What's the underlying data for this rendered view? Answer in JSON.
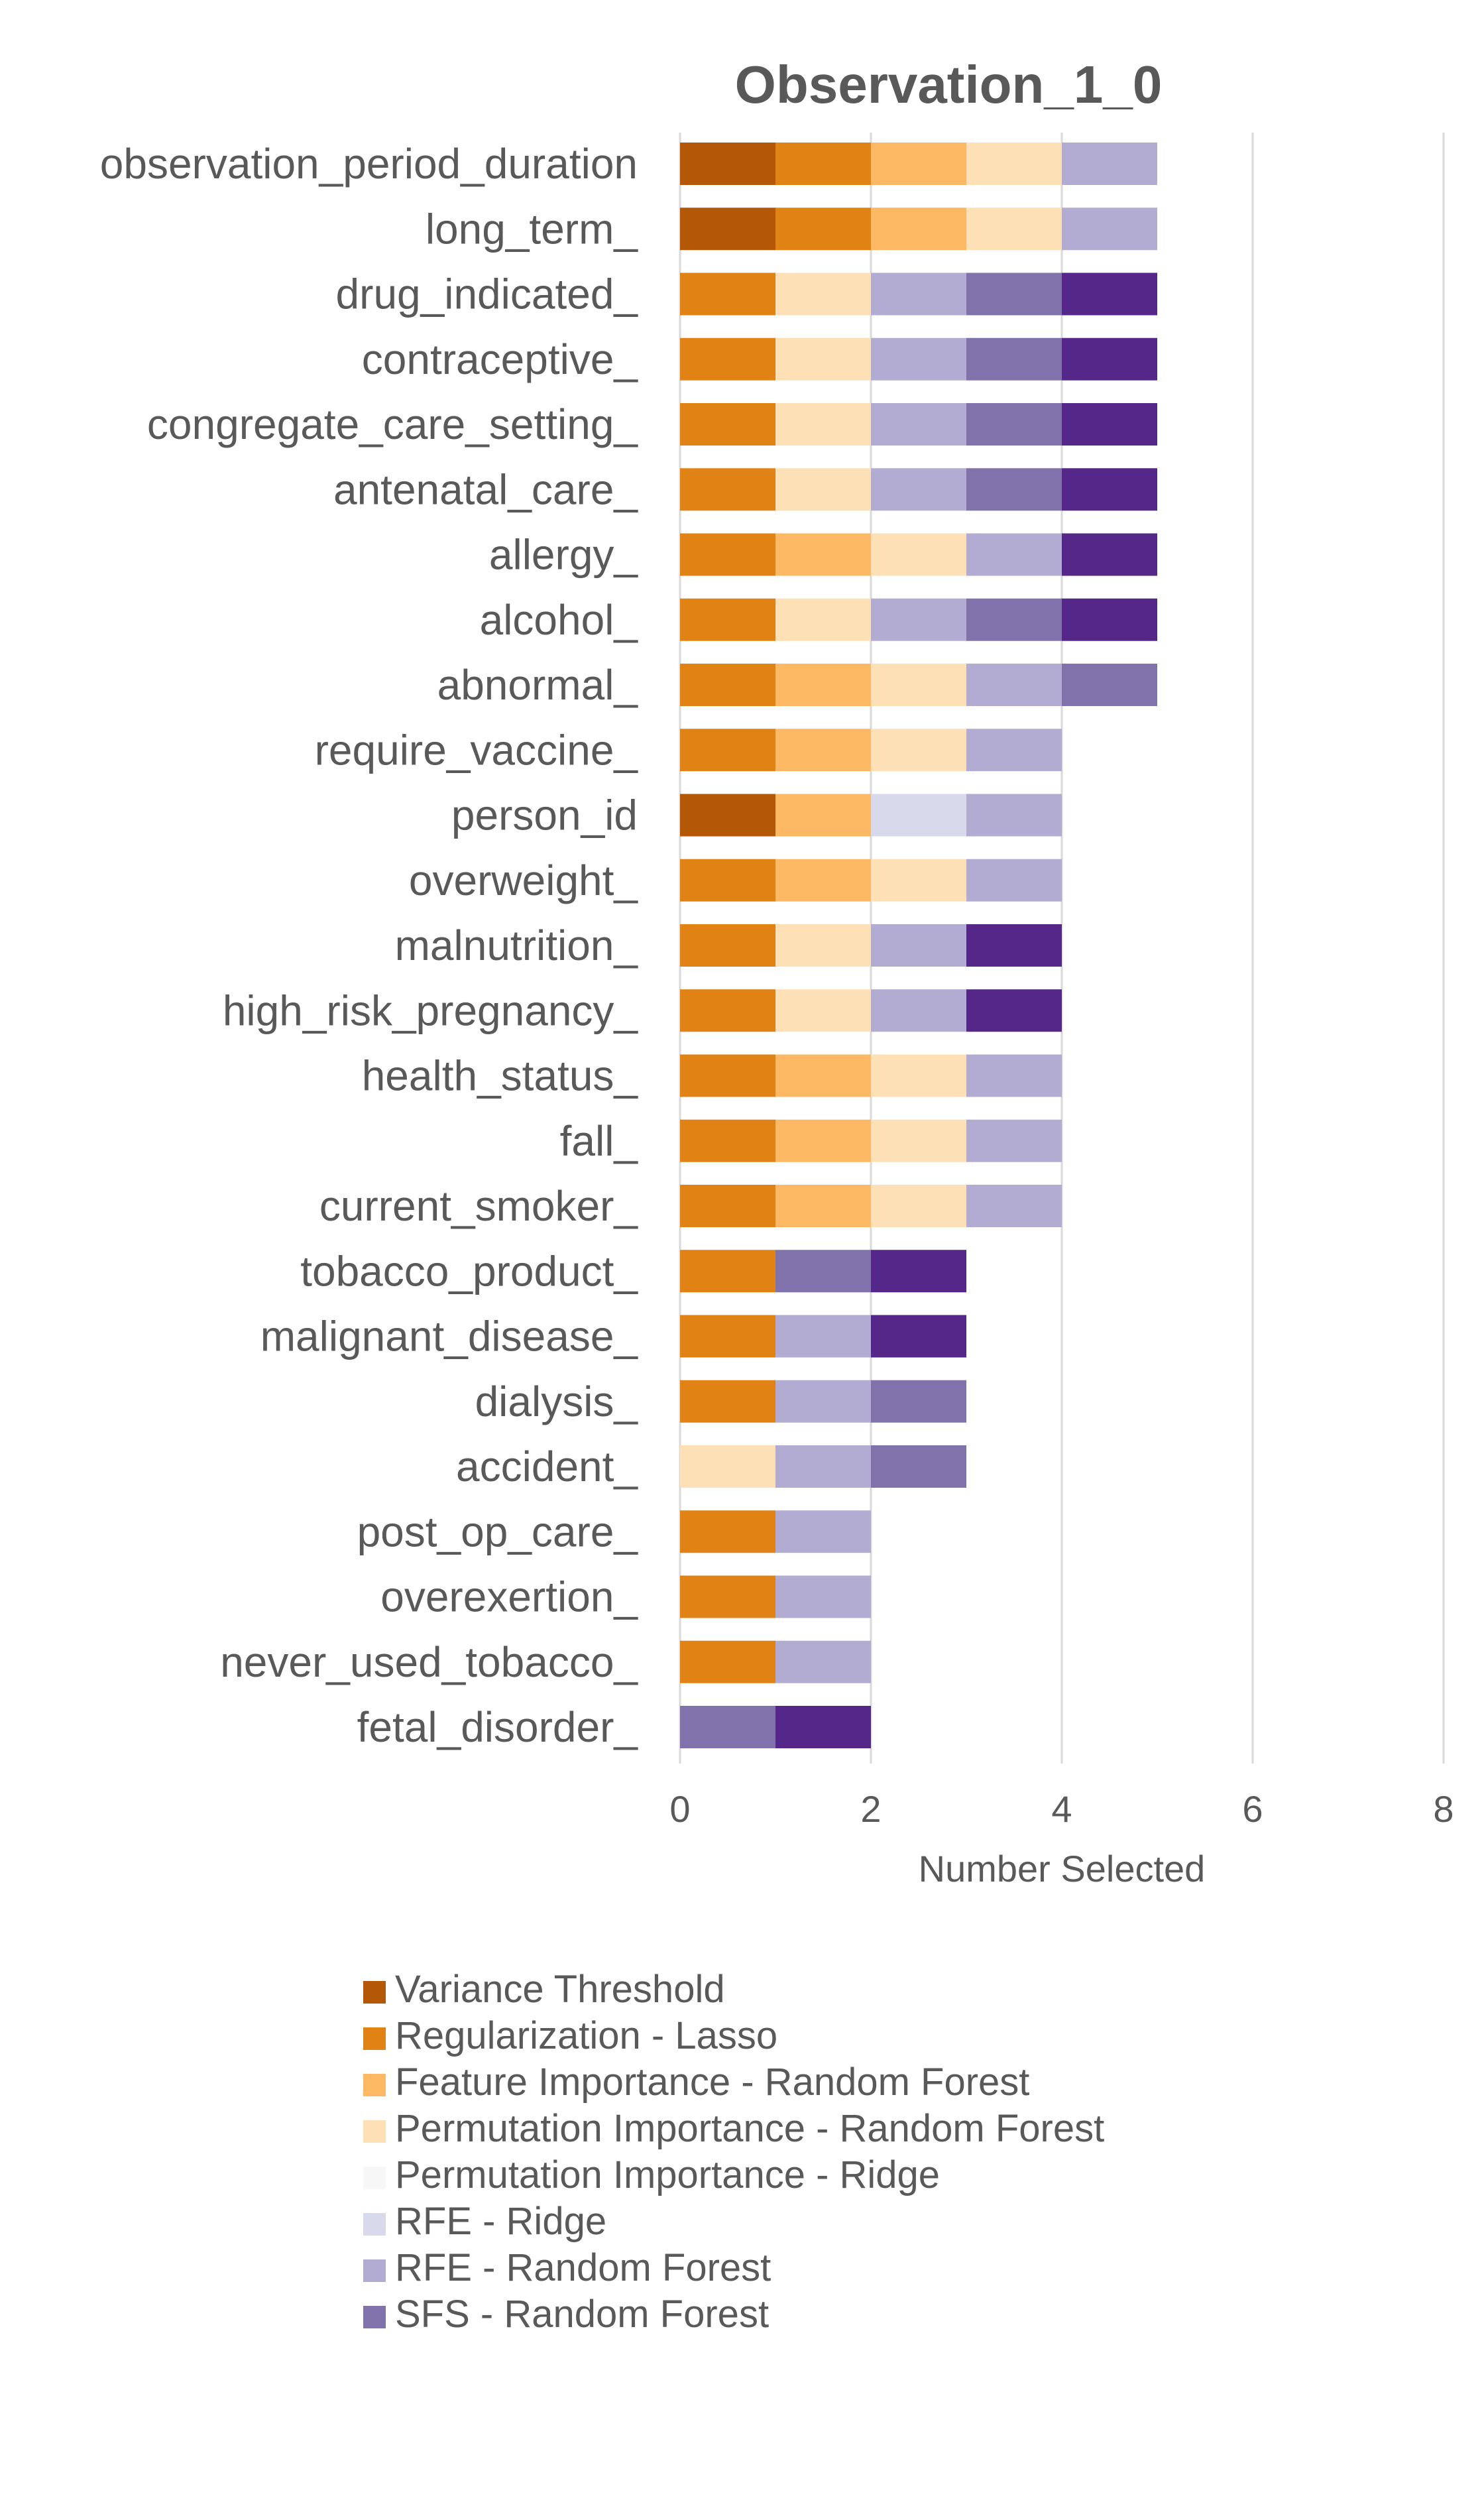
{
  "chart_data": {
    "type": "bar",
    "orientation": "horizontal",
    "stacked": true,
    "title": "Observation_1_0",
    "xlabel": "Number Selected",
    "ylabel": "",
    "xlim": [
      0,
      8
    ],
    "xticks": [
      0,
      2,
      4,
      6,
      8
    ],
    "grid": true,
    "legend_position": "bottom",
    "categories": [
      "observation_period_duration",
      "long_term_",
      "drug_indicated_",
      "contraceptive_",
      "congregate_care_setting_",
      "antenatal_care_",
      "allergy_",
      "alcohol_",
      "abnormal_",
      "require_vaccine_",
      "person_id",
      "overweight_",
      "malnutrition_",
      "high_risk_pregnancy_",
      "health_status_",
      "fall_",
      "current_smoker_",
      "tobacco_product_",
      "malignant_disease_",
      "dialysis_",
      "accident_",
      "post_op_care_",
      "overexertion_",
      "never_used_tobacco_",
      "fetal_disorder_"
    ],
    "series": [
      {
        "name": "Variance Threshold",
        "color": "#b35806",
        "values": [
          1,
          1,
          0,
          0,
          0,
          0,
          0,
          0,
          0,
          0,
          1,
          0,
          0,
          0,
          0,
          0,
          0,
          0,
          0,
          0,
          0,
          0,
          0,
          0,
          0
        ]
      },
      {
        "name": "Regularization - Lasso",
        "color": "#e08214",
        "values": [
          1,
          1,
          1,
          1,
          1,
          1,
          1,
          1,
          1,
          1,
          0,
          1,
          1,
          1,
          1,
          1,
          1,
          1,
          1,
          1,
          0,
          1,
          1,
          1,
          0
        ]
      },
      {
        "name": "Feature Importance - Random Forest",
        "color": "#fdb863",
        "values": [
          1,
          1,
          0,
          0,
          0,
          0,
          1,
          0,
          1,
          1,
          1,
          1,
          0,
          0,
          1,
          1,
          1,
          0,
          0,
          0,
          0,
          0,
          0,
          0,
          0
        ]
      },
      {
        "name": "Permutation Importance - Random Forest",
        "color": "#fee0b6",
        "values": [
          1,
          1,
          1,
          1,
          1,
          1,
          1,
          1,
          1,
          1,
          0,
          1,
          1,
          1,
          1,
          1,
          1,
          0,
          0,
          0,
          1,
          0,
          0,
          0,
          0
        ]
      },
      {
        "name": "Permutation Importance - Ridge",
        "color": "#f7f7f7",
        "values": [
          0,
          0,
          0,
          0,
          0,
          0,
          0,
          0,
          0,
          0,
          0,
          0,
          0,
          0,
          0,
          0,
          0,
          0,
          0,
          0,
          0,
          0,
          0,
          0,
          0
        ]
      },
      {
        "name": "RFE - Ridge",
        "color": "#d8daeb",
        "values": [
          0,
          0,
          0,
          0,
          0,
          0,
          0,
          0,
          0,
          0,
          1,
          0,
          0,
          0,
          0,
          0,
          0,
          0,
          0,
          0,
          0,
          0,
          0,
          0,
          0
        ]
      },
      {
        "name": "RFE - Random Forest",
        "color": "#b2abd2",
        "values": [
          1,
          1,
          1,
          1,
          1,
          1,
          1,
          1,
          1,
          1,
          1,
          1,
          1,
          1,
          1,
          1,
          1,
          0,
          1,
          1,
          1,
          1,
          1,
          1,
          0
        ]
      },
      {
        "name": "SFS - Random Forest",
        "color": "#8073ac",
        "values": [
          0,
          0,
          1,
          1,
          1,
          1,
          0,
          1,
          1,
          0,
          0,
          0,
          0,
          0,
          0,
          0,
          0,
          1,
          0,
          1,
          1,
          0,
          0,
          0,
          1
        ]
      },
      {
        "name": "",
        "color": "#542788",
        "values": [
          0,
          0,
          1,
          1,
          1,
          1,
          1,
          1,
          0,
          0,
          0,
          0,
          1,
          1,
          0,
          0,
          0,
          1,
          1,
          0,
          0,
          0,
          0,
          0,
          1
        ]
      }
    ]
  }
}
